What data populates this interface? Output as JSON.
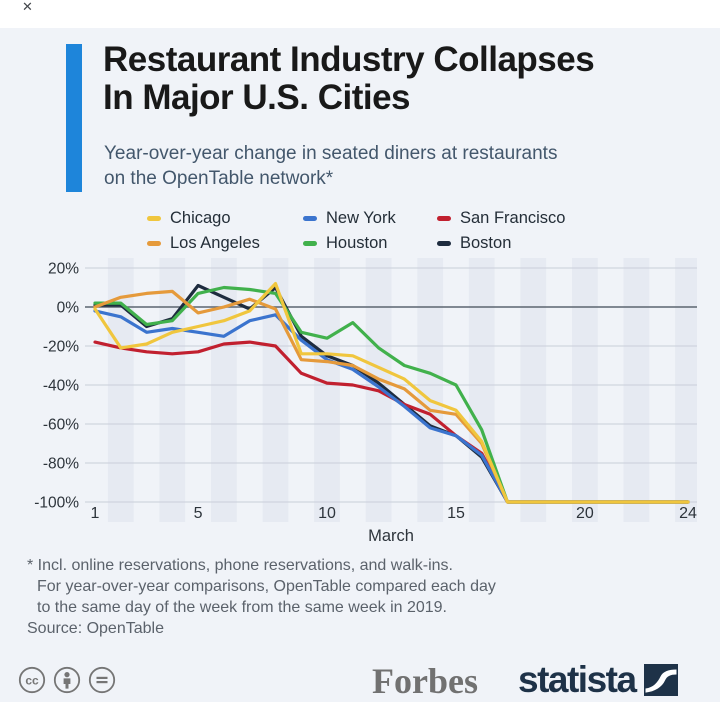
{
  "header": {
    "title_line1": "Restaurant Industry Collapses",
    "title_line2": "In Major U.S. Cities",
    "subtitle_line1": "Year-over-year change in seated diners at restaurants",
    "subtitle_line2": "on the OpenTable network*",
    "accent_color": "#1e85da",
    "close_mark": "✕"
  },
  "chart_data": {
    "type": "line",
    "xlabel": "March",
    "x": [
      1,
      2,
      3,
      4,
      5,
      6,
      7,
      8,
      9,
      10,
      11,
      12,
      13,
      14,
      15,
      16,
      17,
      18,
      19,
      20,
      21,
      22,
      23,
      24
    ],
    "x_ticks": [
      1,
      5,
      10,
      15,
      20,
      24
    ],
    "y_ticks": [
      20,
      0,
      -20,
      -40,
      -60,
      -80,
      -100
    ],
    "y_tick_labels": [
      "20%",
      "0%",
      "-20%",
      "-40%",
      "-60%",
      "-80%",
      "-100%"
    ],
    "ylim": [
      -100,
      20
    ],
    "unit": "%",
    "grid": "horizontal, with alternating vertical day bands",
    "legend_position": "top",
    "band_color": "#e6eaf2",
    "gridline_color": "#c9cfd9",
    "zeroline_color": "#5b6570",
    "series": [
      {
        "name": "Chicago",
        "color": "#f0c63e",
        "values": [
          -1,
          -21,
          -19,
          -13,
          -10,
          -7,
          -2,
          12,
          -24,
          -24,
          -25,
          -31,
          -37,
          -48,
          -53,
          -69,
          -100,
          -100,
          -100,
          -100,
          -100,
          -100,
          -100,
          -100
        ]
      },
      {
        "name": "Los Angeles",
        "color": "#e59a3b",
        "values": [
          0,
          5,
          7,
          8,
          -3,
          0,
          4,
          -1,
          -27,
          -28,
          -30,
          -37,
          -42,
          -53,
          -55,
          -70,
          -100,
          -100,
          -100,
          -100,
          -100,
          -100,
          -100,
          -100
        ]
      },
      {
        "name": "New York",
        "color": "#3b74ce",
        "values": [
          -2,
          -5,
          -13,
          -11,
          -13,
          -15,
          -7,
          -4,
          -17,
          -27,
          -32,
          -41,
          -51,
          -62,
          -66,
          -76,
          -100,
          -100,
          -100,
          -100,
          -100,
          -100,
          -100,
          -100
        ]
      },
      {
        "name": "Houston",
        "color": "#41b14c",
        "values": [
          2,
          2,
          -9,
          -7,
          7,
          10,
          9,
          7,
          -13,
          -16,
          -8,
          -21,
          -30,
          -34,
          -40,
          -63,
          -100,
          -100,
          -100,
          -100,
          -100,
          -100,
          -100,
          -100
        ]
      },
      {
        "name": "San Francisco",
        "color": "#c1202f",
        "values": [
          -18,
          -21,
          -23,
          -24,
          -23,
          -19,
          -18,
          -20,
          -34,
          -39,
          -40,
          -43,
          -50,
          -55,
          -66,
          -75,
          -100,
          -100,
          -100,
          -100,
          -100,
          -100,
          -100,
          -100
        ]
      },
      {
        "name": "Boston",
        "color": "#1e2c3f",
        "values": [
          1,
          1,
          -10,
          -6,
          11,
          5,
          -1,
          10,
          -15,
          -25,
          -30,
          -39,
          -50,
          -61,
          -66,
          -77,
          -100,
          -100,
          -100,
          -100,
          -100,
          -100,
          -100,
          -100
        ]
      }
    ],
    "draw_order": [
      "Boston",
      "San Francisco",
      "Houston",
      "New York",
      "Los Angeles",
      "Chicago"
    ]
  },
  "footnote": {
    "line1": "* Incl. online reservations, phone reservations, and walk-ins.",
    "line2": "For year-over-year comparisons, OpenTable compared each day",
    "line3": "to the same day of the week from the same week in 2019.",
    "source": "Source: OpenTable"
  },
  "footer": {
    "license_icons": [
      "cc",
      "attribution",
      "no-derivatives"
    ],
    "forbes_logo": "Forbes",
    "statista_logo": "statista",
    "statista_color": "#1e3248"
  }
}
